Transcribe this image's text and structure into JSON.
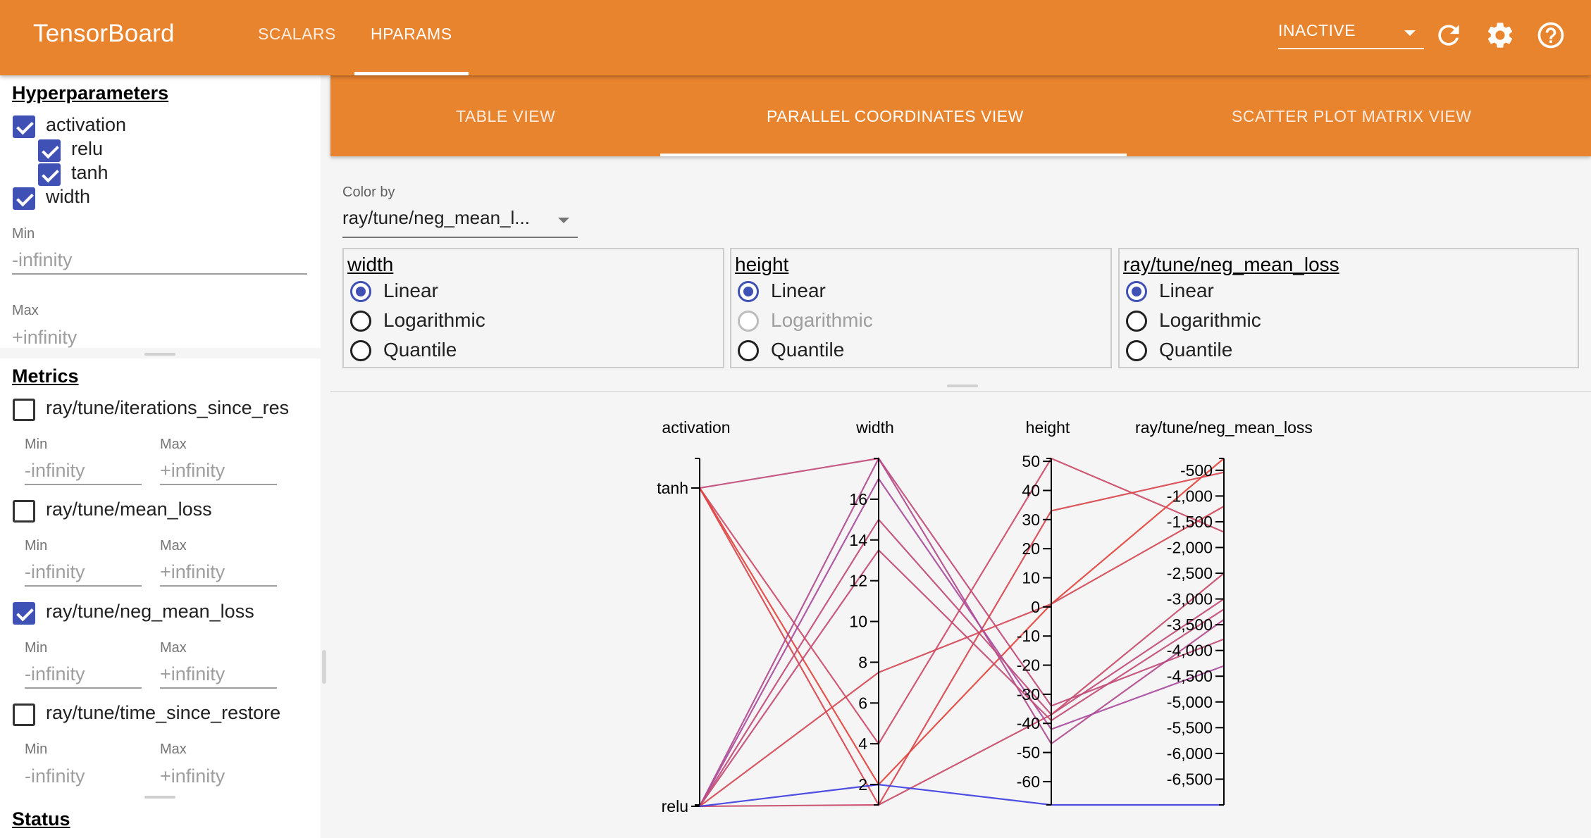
{
  "app": {
    "title": "TensorBoard"
  },
  "nav": {
    "tabs": [
      {
        "label": "SCALARS"
      },
      {
        "label": "HPARAMS"
      }
    ],
    "active": "HPARAMS"
  },
  "header": {
    "run_status": "INACTIVE",
    "icons": [
      "refresh-icon",
      "settings-gear-icon",
      "help-icon"
    ]
  },
  "sidebar": {
    "hyperparameters": {
      "title": "Hyperparameters",
      "items": [
        {
          "label": "activation",
          "checked": true
        },
        {
          "label": "relu",
          "checked": true
        },
        {
          "label": "tanh",
          "checked": true
        },
        {
          "label": "width",
          "checked": true
        }
      ],
      "width_filter": {
        "min_label": "Min",
        "min_placeholder": "-infinity",
        "max_label": "Max",
        "max_placeholder": "+infinity"
      }
    },
    "metrics": {
      "title": "Metrics",
      "items": [
        {
          "label": "ray/tune/iterations_since_res",
          "checked": false,
          "min_label": "Min",
          "min_placeholder": "-infinity",
          "max_label": "Max",
          "max_placeholder": "+infinity"
        },
        {
          "label": "ray/tune/mean_loss",
          "checked": false,
          "min_label": "Min",
          "min_placeholder": "-infinity",
          "max_label": "Max",
          "max_placeholder": "+infinity"
        },
        {
          "label": "ray/tune/neg_mean_loss",
          "checked": true,
          "min_label": "Min",
          "min_placeholder": "-infinity",
          "max_label": "Max",
          "max_placeholder": "+infinity"
        },
        {
          "label": "ray/tune/time_since_restore",
          "checked": false,
          "min_label": "Min",
          "min_placeholder": "-infinity",
          "max_label": "Max",
          "max_placeholder": "+infinity"
        }
      ]
    },
    "status": {
      "title": "Status"
    }
  },
  "views": {
    "tabs": [
      {
        "label": "TABLE VIEW"
      },
      {
        "label": "PARALLEL COORDINATES VIEW"
      },
      {
        "label": "SCATTER PLOT MATRIX VIEW"
      }
    ],
    "active": "PARALLEL COORDINATES VIEW"
  },
  "color_by": {
    "label": "Color by",
    "value": "ray/tune/neg_mean_l..."
  },
  "scale_options": [
    {
      "title": "width",
      "options": [
        "Linear",
        "Logarithmic",
        "Quantile"
      ],
      "selected": "Linear",
      "disabled": []
    },
    {
      "title": "height",
      "options": [
        "Linear",
        "Logarithmic",
        "Quantile"
      ],
      "selected": "Linear",
      "disabled": [
        "Logarithmic"
      ]
    },
    {
      "title": "ray/tune/neg_mean_loss",
      "options": [
        "Linear",
        "Logarithmic",
        "Quantile"
      ],
      "selected": "Linear",
      "disabled": []
    }
  ],
  "chart_data": {
    "type": "parallel_coordinates",
    "axes": [
      {
        "name": "activation",
        "kind": "categorical",
        "categories": [
          "tanh",
          "relu"
        ]
      },
      {
        "name": "width",
        "kind": "linear",
        "range": [
          1,
          18
        ],
        "ticks": [
          16,
          14,
          12,
          10,
          8,
          6,
          4,
          2
        ]
      },
      {
        "name": "height",
        "kind": "linear",
        "range": [
          -68,
          51
        ],
        "ticks": [
          50,
          40,
          30,
          20,
          10,
          0,
          -10,
          -20,
          -30,
          -40,
          -50,
          -60
        ]
      },
      {
        "name": "ray/tune/neg_mean_loss",
        "kind": "linear",
        "range": [
          -7000,
          -270
        ],
        "ticks": [
          -500,
          -1000,
          -1500,
          -2000,
          -2500,
          -3000,
          -3500,
          -4000,
          -4500,
          -5000,
          -5500,
          -6000,
          -6500
        ],
        "tick_labels": [
          "-500",
          "-1,000",
          "-1,500",
          "-2,000",
          "-2,500",
          "-3,000",
          "-3,500",
          "-4,000",
          "-4,500",
          "-5,000",
          "-5,500",
          "-6,000",
          "-6,500"
        ]
      }
    ],
    "trials": [
      {
        "activation": "tanh",
        "width": 18,
        "height": -34,
        "neg_mean_loss": -3780,
        "color": "#c04a78"
      },
      {
        "activation": "tanh",
        "width": 4,
        "height": 51,
        "neg_mean_loss": -1700,
        "color": "#cc4a68"
      },
      {
        "activation": "tanh",
        "width": 1,
        "height": 33,
        "neg_mean_loss": -540,
        "color": "#d8454d"
      },
      {
        "activation": "tanh",
        "width": 2,
        "height": 1,
        "neg_mean_loss": -270,
        "color": "#e2433b"
      },
      {
        "activation": "relu",
        "width": 18,
        "height": -47,
        "neg_mean_loss": -3400,
        "color": "#b04a8e"
      },
      {
        "activation": "relu",
        "width": 17,
        "height": -42,
        "neg_mean_loss": -4300,
        "color": "#aa4a9e"
      },
      {
        "activation": "relu",
        "width": 15,
        "height": -37,
        "neg_mean_loss": -3000,
        "color": "#c04a78"
      },
      {
        "activation": "relu",
        "width": 13.5,
        "height": -39,
        "neg_mean_loss": -3200,
        "color": "#c24a74"
      },
      {
        "activation": "relu",
        "width": 7.5,
        "height": 1,
        "neg_mean_loss": -1200,
        "color": "#d44856"
      },
      {
        "activation": "relu",
        "width": 1,
        "height": -37,
        "neg_mean_loss": -2500,
        "color": "#c84a6a"
      },
      {
        "activation": "relu",
        "width": 2,
        "height": -68,
        "neg_mean_loss": -7000,
        "color": "#3c3ce0"
      }
    ]
  }
}
